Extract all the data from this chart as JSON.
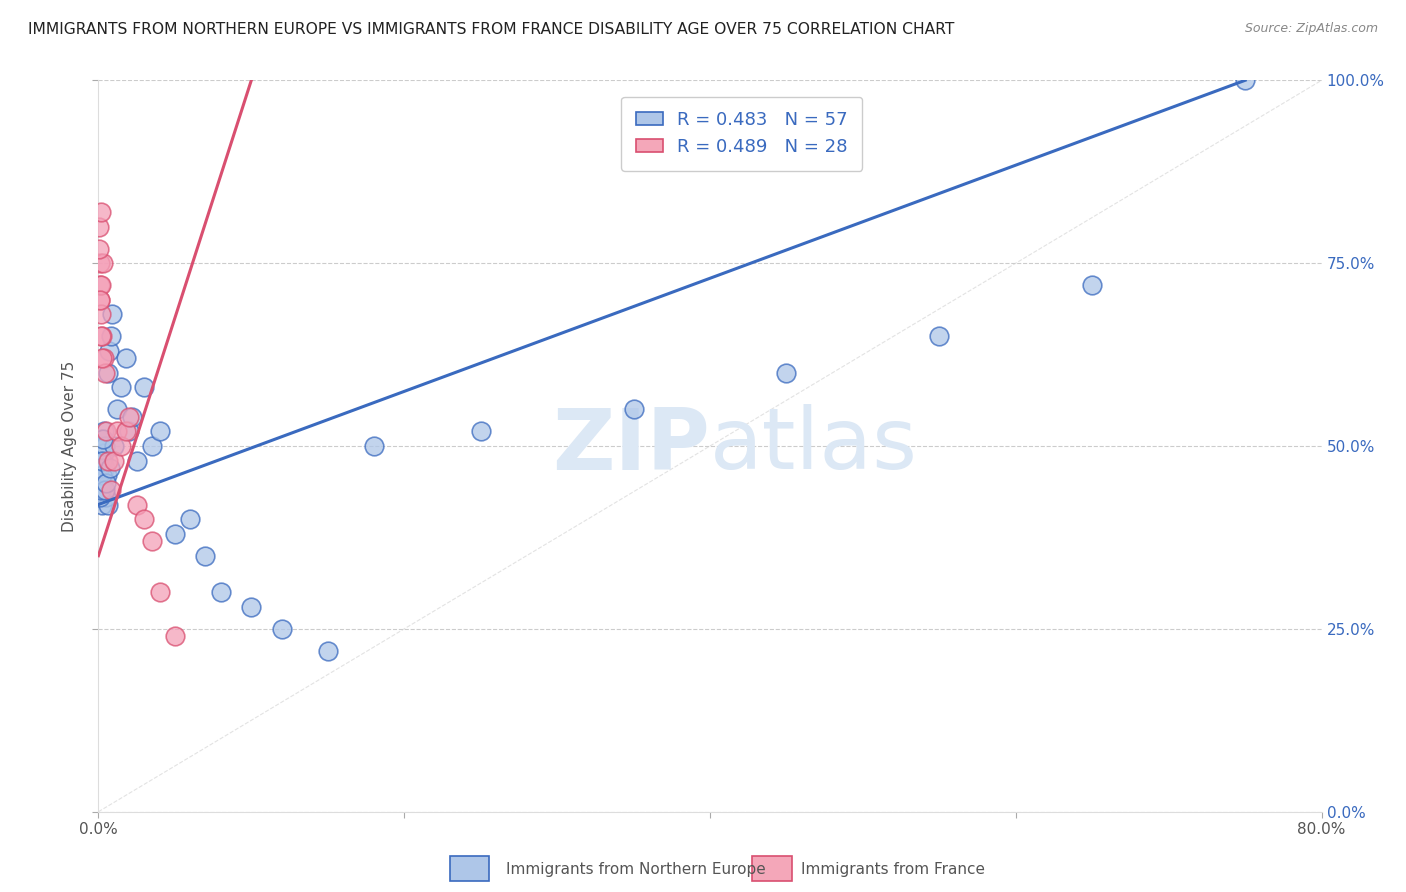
{
  "title": "IMMIGRANTS FROM NORTHERN EUROPE VS IMMIGRANTS FROM FRANCE DISABILITY AGE OVER 75 CORRELATION CHART",
  "source": "Source: ZipAtlas.com",
  "ylabel": "Disability Age Over 75",
  "xlim": [
    0.0,
    80.0
  ],
  "ylim": [
    0.0,
    100.0
  ],
  "xticks": [
    0.0,
    20.0,
    40.0,
    60.0,
    80.0
  ],
  "xticklabels": [
    "0.0%",
    "",
    "",
    "",
    "80.0%"
  ],
  "yticks_right": [
    0.0,
    25.0,
    50.0,
    75.0,
    100.0
  ],
  "yticklabels_right": [
    "0.0%",
    "25.0%",
    "50.0%",
    "75.0%",
    "100.0%"
  ],
  "legend1_label": "R = 0.483   N = 57",
  "legend2_label": "R = 0.489   N = 28",
  "legend1_color": "#aec6e8",
  "legend2_color": "#f4a7b9",
  "blue_line_color": "#3a6abf",
  "pink_line_color": "#d94f70",
  "watermark_top": "ZIP",
  "watermark_bottom": "atlas",
  "watermark_color": "#dce8f5",
  "title_fontsize": 11.5,
  "axis_label_color": "#555555",
  "tick_color": "#555555",
  "right_tick_color": "#3a6abf",
  "blue_scatter_color": "#aec6e8",
  "pink_scatter_color": "#f4a0b8",
  "blue_scatter_edge": "#3a6abf",
  "pink_scatter_edge": "#d94f70",
  "blue_x": [
    0.05,
    0.08,
    0.1,
    0.12,
    0.15,
    0.18,
    0.2,
    0.22,
    0.25,
    0.28,
    0.3,
    0.32,
    0.35,
    0.38,
    0.4,
    0.45,
    0.5,
    0.55,
    0.6,
    0.65,
    0.7,
    0.8,
    0.9,
    1.0,
    1.2,
    1.5,
    1.8,
    2.0,
    2.2,
    2.5,
    3.0,
    3.5,
    4.0,
    5.0,
    6.0,
    7.0,
    8.0,
    10.0,
    12.0,
    15.0,
    18.0,
    25.0,
    35.0,
    45.0,
    55.0,
    65.0,
    75.0,
    0.06,
    0.09,
    0.13,
    0.17,
    0.21,
    0.26,
    0.33,
    0.42,
    0.52,
    0.75
  ],
  "blue_y": [
    49.0,
    46.0,
    48.0,
    51.0,
    50.0,
    45.0,
    43.0,
    47.0,
    42.0,
    48.0,
    46.0,
    44.0,
    49.0,
    52.0,
    50.0,
    47.0,
    43.0,
    46.0,
    42.0,
    60.0,
    63.0,
    65.0,
    68.0,
    50.0,
    55.0,
    58.0,
    62.0,
    52.0,
    54.0,
    48.0,
    58.0,
    50.0,
    52.0,
    38.0,
    40.0,
    35.0,
    30.0,
    28.0,
    25.0,
    22.0,
    50.0,
    52.0,
    55.0,
    60.0,
    65.0,
    72.0,
    100.0,
    45.0,
    43.0,
    47.0,
    44.0,
    46.0,
    48.0,
    51.0,
    44.0,
    45.0,
    47.0
  ],
  "pink_x": [
    0.05,
    0.08,
    0.1,
    0.12,
    0.15,
    0.18,
    0.2,
    0.25,
    0.3,
    0.35,
    0.4,
    0.5,
    0.6,
    0.8,
    1.0,
    1.2,
    1.5,
    1.8,
    2.0,
    2.5,
    3.0,
    3.5,
    4.0,
    5.0,
    0.07,
    0.11,
    0.16,
    0.22
  ],
  "pink_y": [
    80.0,
    75.0,
    70.0,
    72.0,
    82.0,
    68.0,
    72.0,
    65.0,
    75.0,
    62.0,
    60.0,
    52.0,
    48.0,
    44.0,
    48.0,
    52.0,
    50.0,
    52.0,
    54.0,
    42.0,
    40.0,
    37.0,
    30.0,
    24.0,
    77.0,
    70.0,
    65.0,
    62.0
  ],
  "blue_line_x0": 0.0,
  "blue_line_x1": 75.0,
  "blue_line_y0": 42.0,
  "blue_line_y1": 100.0,
  "pink_line_x0": 0.0,
  "pink_line_x1": 10.0,
  "pink_line_y0": 35.0,
  "pink_line_y1": 100.0,
  "diag_line_color": "#d0d0d0",
  "grid_color": "#cccccc",
  "grid_style": "--",
  "background_color": "#ffffff",
  "bottom_legend_blue": "Immigrants from Northern Europe",
  "bottom_legend_pink": "Immigrants from France"
}
